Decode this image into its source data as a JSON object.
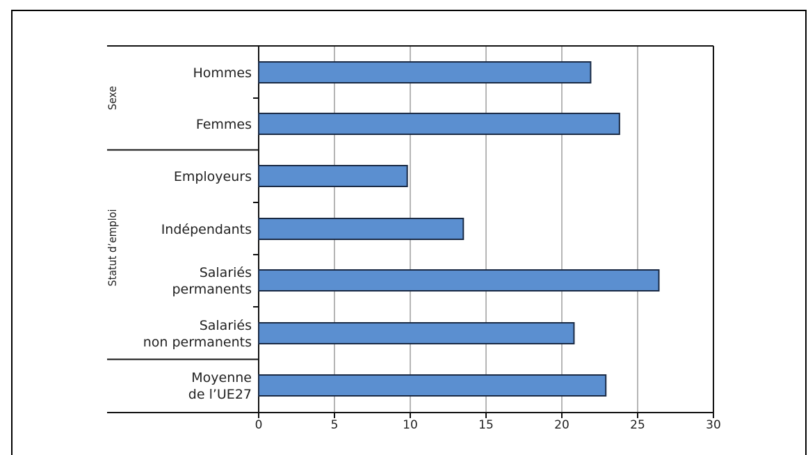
{
  "chart_data": {
    "type": "bar",
    "orientation": "horizontal",
    "categories": [
      [
        "Hommes"
      ],
      [
        "Femmes"
      ],
      [
        "Employeurs"
      ],
      [
        "Indépendants"
      ],
      [
        "Salariés",
        "permanents"
      ],
      [
        "Salariés",
        "non permanents"
      ],
      [
        "Moyenne",
        "de l’UE27"
      ]
    ],
    "values": [
      21.9,
      23.8,
      9.8,
      13.5,
      26.4,
      20.8,
      22.9
    ],
    "groups": [
      {
        "label": "Sexe",
        "members": [
          0,
          1
        ]
      },
      {
        "label": "Statut d’emploi",
        "members": [
          2,
          3,
          4,
          5
        ]
      },
      {
        "label": "",
        "members": [
          6
        ]
      }
    ],
    "xticks": [
      "0",
      "5",
      "10",
      "15",
      "20",
      "25",
      "30"
    ],
    "xlim": [
      0,
      30
    ],
    "grid": true,
    "bar_color": "#5b8fd0",
    "bar_edge": "#1a2a44"
  }
}
